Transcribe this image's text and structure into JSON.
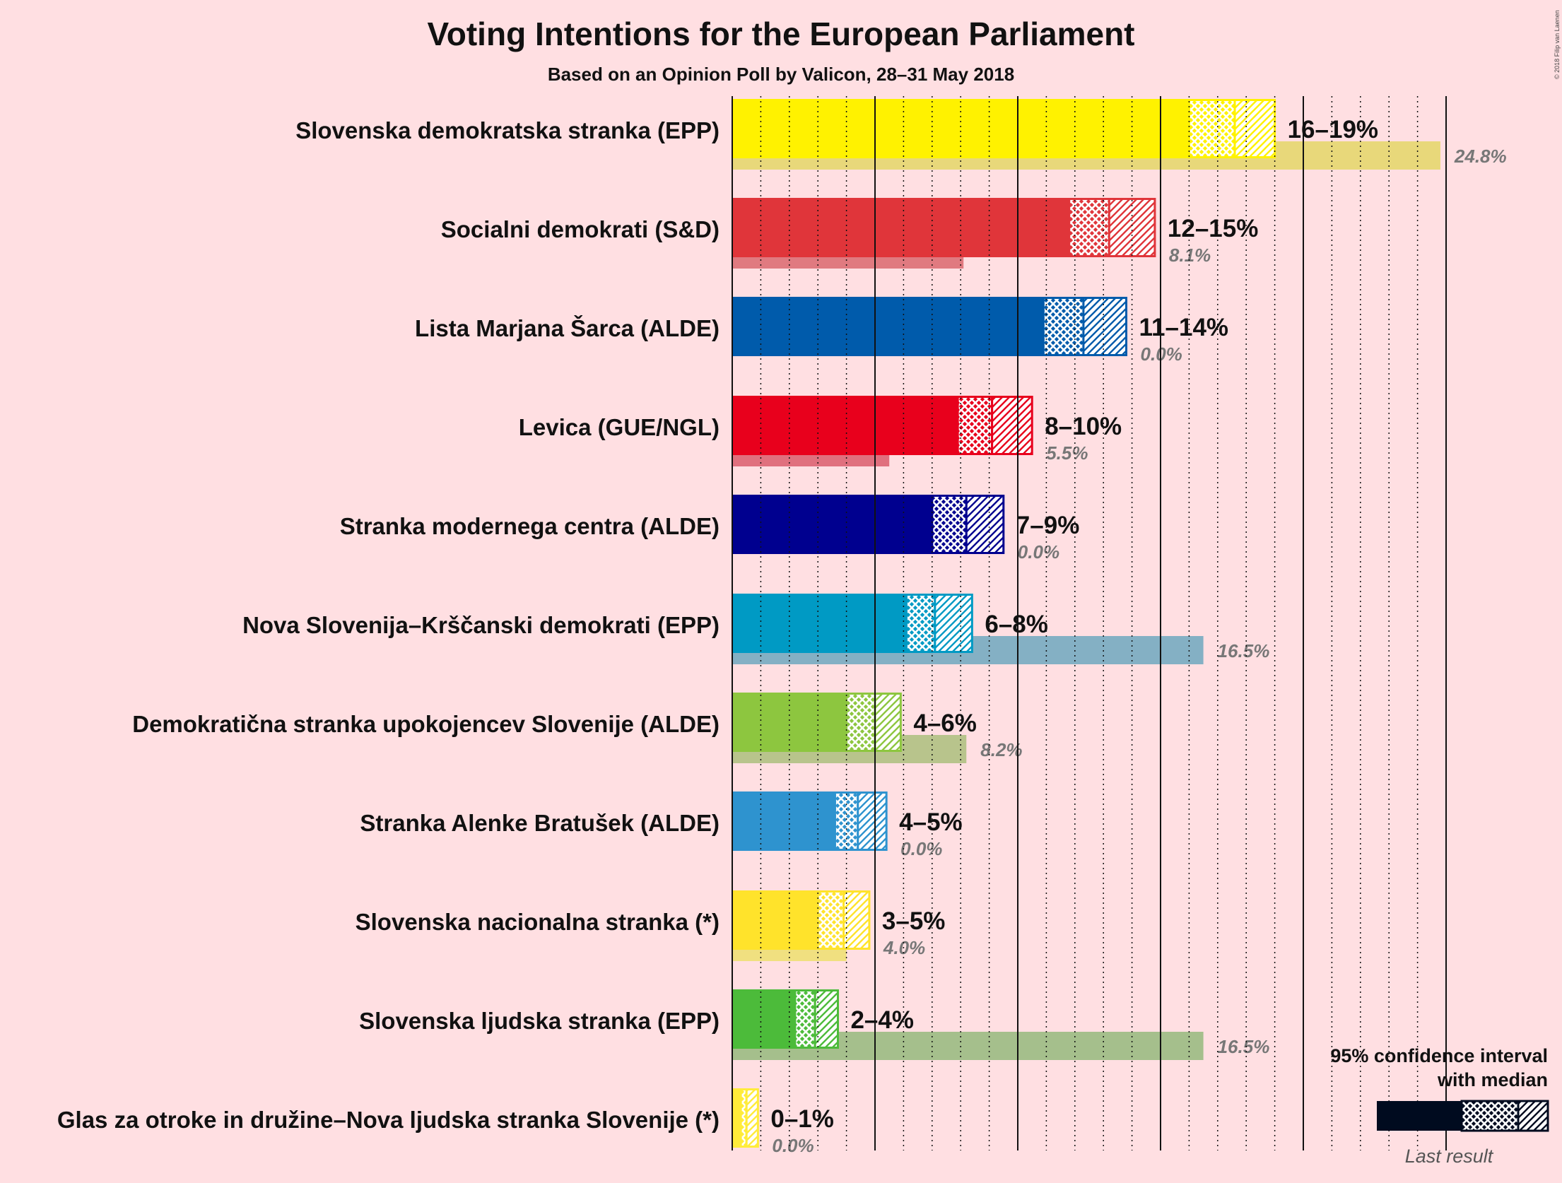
{
  "chart_data": {
    "type": "bar",
    "title": "Voting Intentions for the European Parliament",
    "subtitle": "Based on an Opinion Poll by Valicon, 28–31 May 2018",
    "copyright": "© 2018 Filip van Laenen",
    "unit": "%",
    "xlim": [
      0,
      25
    ],
    "grid": "dotted every 1%, solid every 5%",
    "series": [
      {
        "name": "Slovenska demokratska stranka (EPP)",
        "color": "#fff200",
        "low": 16,
        "median": 17.6,
        "high": 19,
        "range_label": "16–19%",
        "last_result": 24.8,
        "last_label": "24.8%",
        "last_color": "#e8d87a"
      },
      {
        "name": "Socialni demokrati (S&D)",
        "color": "#e0353a",
        "low": 11.8,
        "median": 13.2,
        "high": 14.8,
        "range_label": "12–15%",
        "last_result": 8.1,
        "last_label": "8.1%",
        "last_color": "#e07a80"
      },
      {
        "name": "Lista Marjana Šarca (ALDE)",
        "color": "#005bab",
        "low": 10.9,
        "median": 12.3,
        "high": 13.8,
        "range_label": "11–14%",
        "last_result": 0.0,
        "last_label": "0.0%",
        "last_color": "#7fa7cf"
      },
      {
        "name": "Levica (GUE/NGL)",
        "color": "#e8001c",
        "low": 7.9,
        "median": 9.1,
        "high": 10.5,
        "range_label": "8–10%",
        "last_result": 5.5,
        "last_label": "5.5%",
        "last_color": "#e0707e"
      },
      {
        "name": "Stranka modernega centra (ALDE)",
        "color": "#00008f",
        "low": 7.0,
        "median": 8.2,
        "high": 9.5,
        "range_label": "7–9%",
        "last_result": 0.0,
        "last_label": "0.0%",
        "last_color": "#7f7fc7"
      },
      {
        "name": "Nova Slovenija–Krščanski demokrati (EPP)",
        "color": "#009ac4",
        "low": 6.1,
        "median": 7.1,
        "high": 8.4,
        "range_label": "6–8%",
        "last_result": 16.5,
        "last_label": "16.5%",
        "last_color": "#84b0c4"
      },
      {
        "name": "Demokratična stranka upokojencev Slovenije (ALDE)",
        "color": "#8dc63f",
        "low": 4.0,
        "median": 5.0,
        "high": 5.9,
        "range_label": "4–6%",
        "last_result": 8.2,
        "last_label": "8.2%",
        "last_color": "#b8c48c"
      },
      {
        "name": "Stranka Alenke Bratušek (ALDE)",
        "color": "#2e93cf",
        "low": 3.6,
        "median": 4.4,
        "high": 5.4,
        "range_label": "4–5%",
        "last_result": 0.0,
        "last_label": "0.0%",
        "last_color": "#94bfe0"
      },
      {
        "name": "Slovenska nacionalna stranka (*)",
        "color": "#ffe32b",
        "low": 3.0,
        "median": 3.9,
        "high": 4.8,
        "range_label": "3–5%",
        "last_result": 4.0,
        "last_label": "4.0%",
        "last_color": "#f0e080"
      },
      {
        "name": "Slovenska ljudska stranka (EPP)",
        "color": "#4cbb3a",
        "low": 2.2,
        "median": 2.9,
        "high": 3.7,
        "range_label": "2–4%",
        "last_result": 16.5,
        "last_label": "16.5%",
        "last_color": "#a5bf8c"
      },
      {
        "name": "Glas za otroke in družine–Nova ljudska stranka Slovenije (*)",
        "color": "#ffec3a",
        "low": 0.3,
        "median": 0.5,
        "high": 0.9,
        "range_label": "0–1%",
        "last_result": 0.0,
        "last_label": "0.0%",
        "last_color": "#f0e680"
      }
    ]
  },
  "legend": {
    "title_line1": "95% confidence interval",
    "title_line2": "with median",
    "last_result": "Last result",
    "bar_color": "#000b1f",
    "last_color": "#7a6a6c"
  }
}
